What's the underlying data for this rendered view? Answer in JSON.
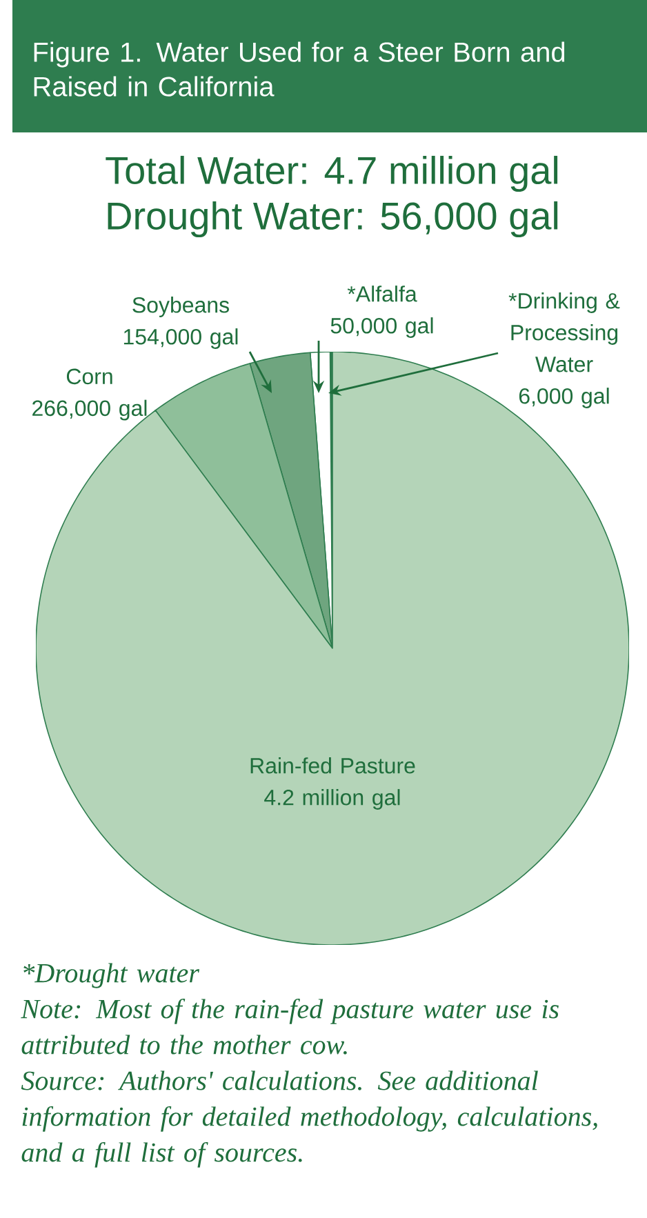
{
  "chart_data": {
    "type": "pie",
    "title": "Figure 1. Water Used for a Steer Born and Raised in California",
    "subtitle": "Total Water: 4.7 million gal",
    "categories": [
      "Rain-fed Pasture",
      "Corn",
      "Soybeans",
      "*Alfalfa",
      "*Drinking & Processing Water"
    ],
    "values": [
      4200000,
      266000,
      154000,
      50000,
      6000
    ],
    "value_labels": [
      "4.2 million gal",
      "266,000 gal",
      "154,000 gal",
      "50,000 gal",
      "6,000 gal"
    ],
    "colors": [
      "#b4d4b8",
      "#8fbf9a",
      "#6fa57f",
      "#ffffff",
      "#2e7d4f"
    ],
    "annotations": [
      "Drought Water: 56,000 gal",
      "*Drought water",
      "Note: Most of the rain-fed pasture water use is attributed to the mother cow.",
      "Source: Authors' calculations. See additional information for detailed methodology, calculations, and a full list of sources."
    ]
  }
}
